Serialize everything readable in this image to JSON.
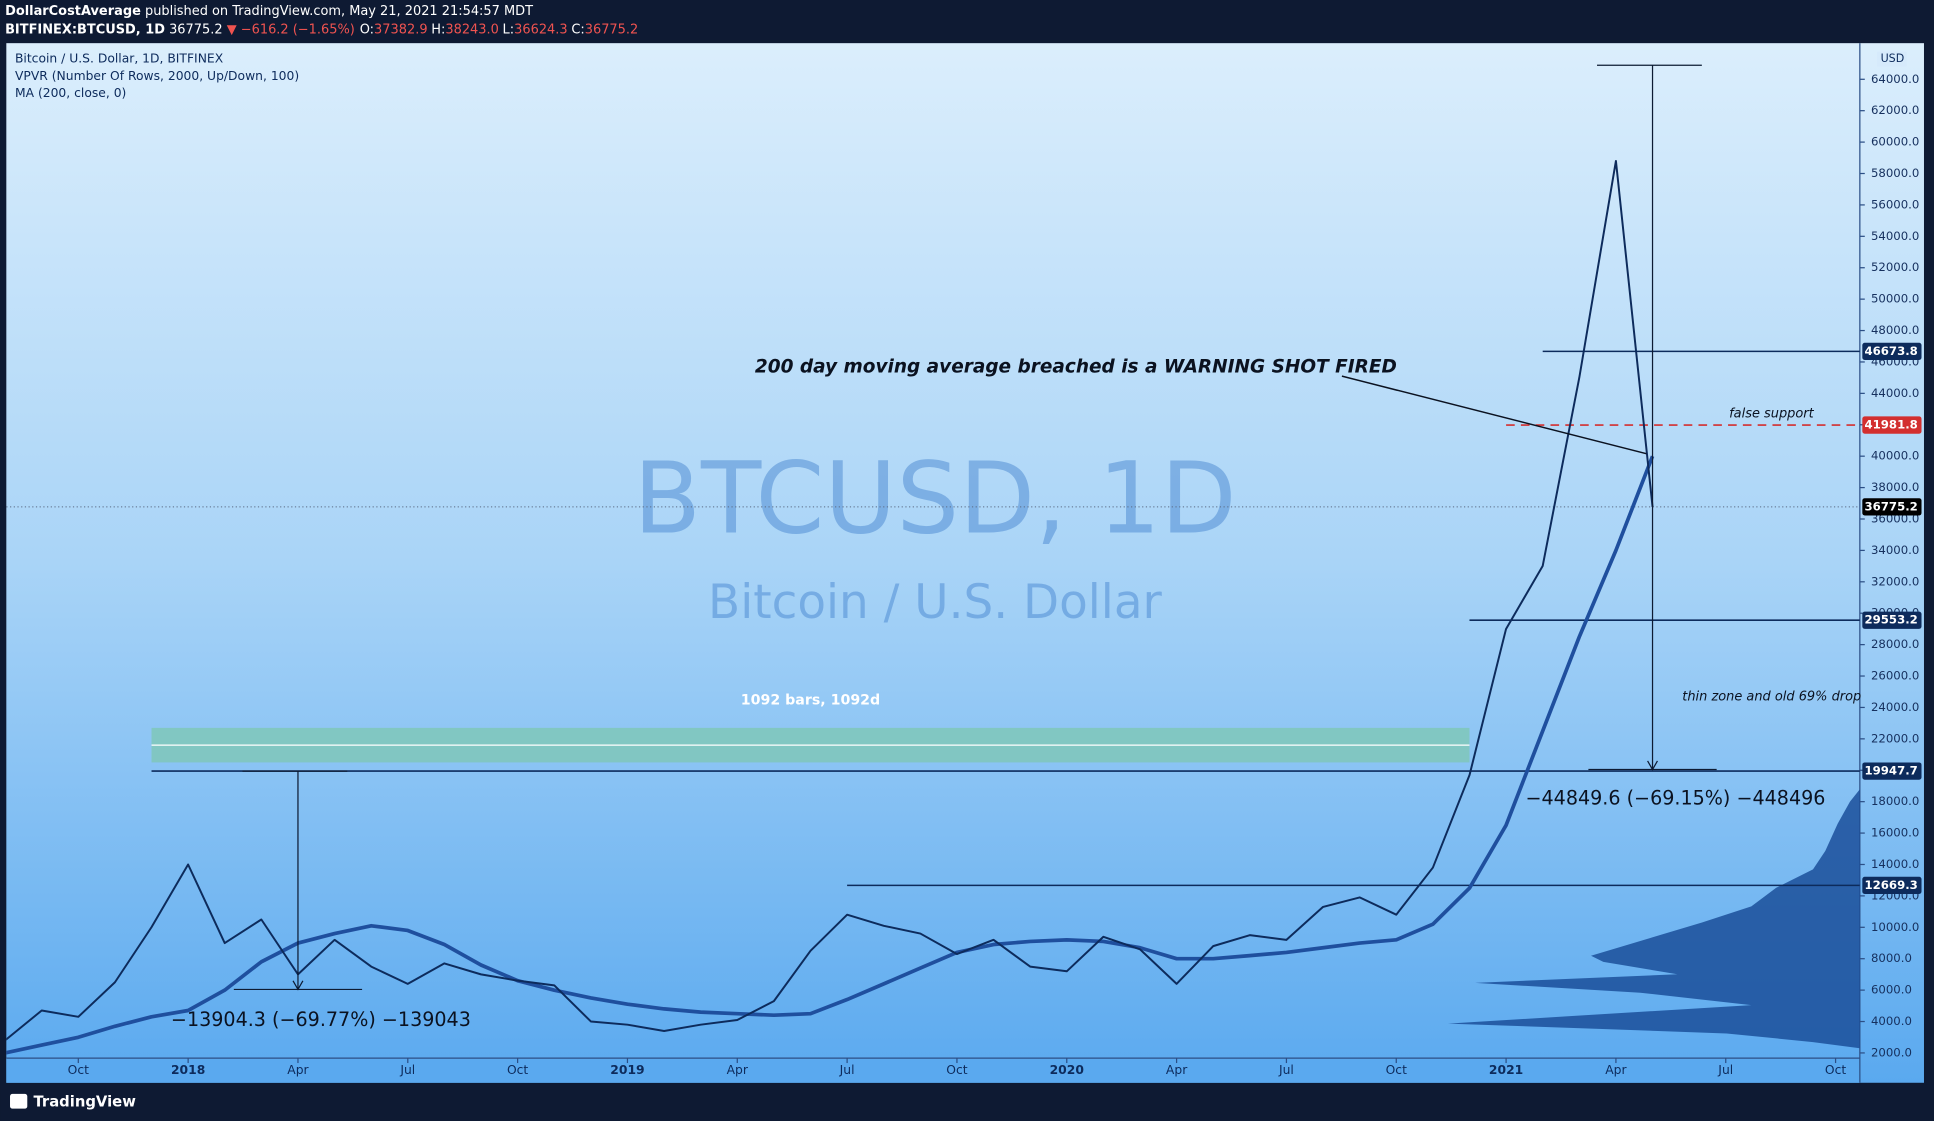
{
  "header": {
    "publisher": "DollarCostAverage",
    "published": "published on TradingView.com, May 21, 2021 21:54:57 MDT",
    "symbol": "BITFINEX:BTCUSD, 1D",
    "price": "36775.2",
    "change": "▼ −616.2 (−1.65%)",
    "ohlc": [
      {
        "label": "O:",
        "value": "37382.9"
      },
      {
        "label": "H:",
        "value": "38243.0"
      },
      {
        "label": "L:",
        "value": "36624.3"
      },
      {
        "label": "C:",
        "value": "36775.2"
      }
    ]
  },
  "legend": [
    "Bitcoin / U.S. Dollar, 1D, BITFINEX",
    "VPVR (Number Of Rows, 2000, Up/Down, 100)",
    "MA (200, close, 0)"
  ],
  "watermark": {
    "symbol": "BTCUSD, 1D",
    "name": "Bitcoin / U.S. Dollar"
  },
  "footer": "TradingView",
  "chart_data": {
    "type": "line",
    "x": [
      "2017-08",
      "2017-09",
      "2017-10",
      "2017-11",
      "2017-12",
      "2018-01",
      "2018-02",
      "2018-03",
      "2018-04",
      "2018-05",
      "2018-06",
      "2018-07",
      "2018-08",
      "2018-09",
      "2018-10",
      "2018-11",
      "2018-12",
      "2019-01",
      "2019-02",
      "2019-03",
      "2019-04",
      "2019-05",
      "2019-06",
      "2019-07",
      "2019-08",
      "2019-09",
      "2019-10",
      "2019-11",
      "2019-12",
      "2020-01",
      "2020-02",
      "2020-03",
      "2020-04",
      "2020-05",
      "2020-06",
      "2020-07",
      "2020-08",
      "2020-09",
      "2020-10",
      "2020-11",
      "2020-12",
      "2021-01",
      "2021-02",
      "2021-03",
      "2021-04",
      "2021-05"
    ],
    "series": [
      {
        "color": "#0d2b5c",
        "values": [
          2800,
          4700,
          4300,
          6500,
          10000,
          14000,
          9000,
          10500,
          7000,
          9200,
          7500,
          6400,
          7700,
          7000,
          6600,
          6300,
          4000,
          3800,
          3400,
          3800,
          4100,
          5300,
          8500,
          10800,
          10100,
          9600,
          8300,
          9200,
          7500,
          7200,
          9400,
          8600,
          6400,
          8800,
          9500,
          9200,
          11300,
          11900,
          10800,
          13800,
          19700,
          29000,
          33000,
          45000,
          58800,
          36775.2
        ]
      },
      {
        "color": "#1f4f9e",
        "values": [
          2000,
          2500,
          3000,
          3700,
          4300,
          4700,
          6000,
          7800,
          9000,
          9600,
          10100,
          9800,
          8900,
          7600,
          6600,
          6000,
          5500,
          5100,
          4800,
          4600,
          4500,
          4400,
          4500,
          5400,
          6400,
          7400,
          8400,
          8900,
          9100,
          9200,
          9100,
          8700,
          8000,
          8000,
          8200,
          8400,
          8700,
          9000,
          9200,
          10200,
          12500,
          16500,
          22500,
          28500,
          34000,
          40000
        ]
      }
    ],
    "xlim": [
      "2017-08",
      "2021-11"
    ],
    "ylim": [
      100,
      66300
    ],
    "xticks": [
      {
        "value": "2017-10",
        "label": "Oct"
      },
      {
        "value": "2018-01",
        "label": "2018"
      },
      {
        "value": "2018-04",
        "label": "Apr"
      },
      {
        "value": "2018-07",
        "label": "Jul"
      },
      {
        "value": "2018-10",
        "label": "Oct"
      },
      {
        "value": "2019-01",
        "label": "2019"
      },
      {
        "value": "2019-04",
        "label": "Apr"
      },
      {
        "value": "2019-07",
        "label": "Jul"
      },
      {
        "value": "2019-10",
        "label": "Oct"
      },
      {
        "value": "2020-01",
        "label": "2020"
      },
      {
        "value": "2020-04",
        "label": "Apr"
      },
      {
        "value": "2020-07",
        "label": "Jul"
      },
      {
        "value": "2020-10",
        "label": "Oct"
      },
      {
        "value": "2021-01",
        "label": "2021"
      },
      {
        "value": "2021-04",
        "label": "Apr"
      },
      {
        "value": "2021-07",
        "label": "Jul"
      },
      {
        "value": "2021-10",
        "label": "Oct"
      }
    ],
    "yticks": [
      {
        "value": 2000,
        "label": "2000.0"
      },
      {
        "value": 4000,
        "label": "4000.0"
      },
      {
        "value": 6000,
        "label": "6000.0"
      },
      {
        "value": 8000,
        "label": "8000.0"
      },
      {
        "value": 10000,
        "label": "10000.0"
      },
      {
        "value": 12000,
        "label": "12000.0"
      },
      {
        "value": 14000,
        "label": "14000.0"
      },
      {
        "value": 16000,
        "label": "16000.0"
      },
      {
        "value": 18000,
        "label": "18000.0"
      },
      {
        "value": 20000,
        "label": "20000.0"
      },
      {
        "value": 22000,
        "label": "22000.0"
      },
      {
        "value": 24000,
        "label": "24000.0"
      },
      {
        "value": 26000,
        "label": "26000.0"
      },
      {
        "value": 28000,
        "label": "28000.0"
      },
      {
        "value": 30000,
        "label": "30000.0"
      },
      {
        "value": 32000,
        "label": "32000.0"
      },
      {
        "value": 34000,
        "label": "34000.0"
      },
      {
        "value": 36000,
        "label": "36000.0"
      },
      {
        "value": 38000,
        "label": "38000.0"
      },
      {
        "value": 40000,
        "label": "40000.0"
      },
      {
        "value": 42000,
        "label": "42000.0"
      },
      {
        "value": 44000,
        "label": "44000.0"
      },
      {
        "value": 46000,
        "label": "46000.0"
      },
      {
        "value": 48000,
        "label": "48000.0"
      },
      {
        "value": 50000,
        "label": "50000.0"
      },
      {
        "value": 52000,
        "label": "52000.0"
      },
      {
        "value": 54000,
        "label": "54000.0"
      },
      {
        "value": 56000,
        "label": "56000.0"
      },
      {
        "value": 58000,
        "label": "58000.0"
      },
      {
        "value": 60000,
        "label": "60000.0"
      },
      {
        "value": 62000,
        "label": "62000.0"
      },
      {
        "value": 64000,
        "label": "64000.0"
      }
    ],
    "y_unit": "USD",
    "levels": [
      {
        "value": 46673.8,
        "from": "2021-02",
        "color": "#0d2b5c",
        "dashed": false
      },
      {
        "value": 41981.8,
        "from": "2021-01",
        "color": "#d32f2f",
        "dashed": true
      },
      {
        "value": 36775.2,
        "from": "2017-08",
        "color": "#000000",
        "dashed": true
      },
      {
        "value": 29553.2,
        "from": "2020-12",
        "color": "#0d2b5c",
        "dashed": false
      },
      {
        "value": 19947.7,
        "from": "2017-12",
        "color": "#0d2b5c",
        "dashed": false
      },
      {
        "value": 12669.3,
        "from": "2019-07",
        "color": "#0d2b5c",
        "dashed": false
      }
    ],
    "measures": [
      {
        "label": "−13904.3 (−69.77%) −139043",
        "date": "2018-04",
        "top": 19947.7,
        "bottom": 6043.4
      },
      {
        "label": "−44849.6 (−69.15%) −448496",
        "date": "2021-05",
        "top": 64895,
        "bottom": 20045.4
      }
    ],
    "range": {
      "label": "1092 bars, 1092d",
      "from": "2017-12",
      "to": "2020-12",
      "low": 20500,
      "high": 22700
    },
    "annotations": {
      "warning": "200 day moving average breached is a WARNING SHOT FIRED",
      "false_support": "false support",
      "thin_zone": "thin zone and old 69% drop"
    }
  }
}
